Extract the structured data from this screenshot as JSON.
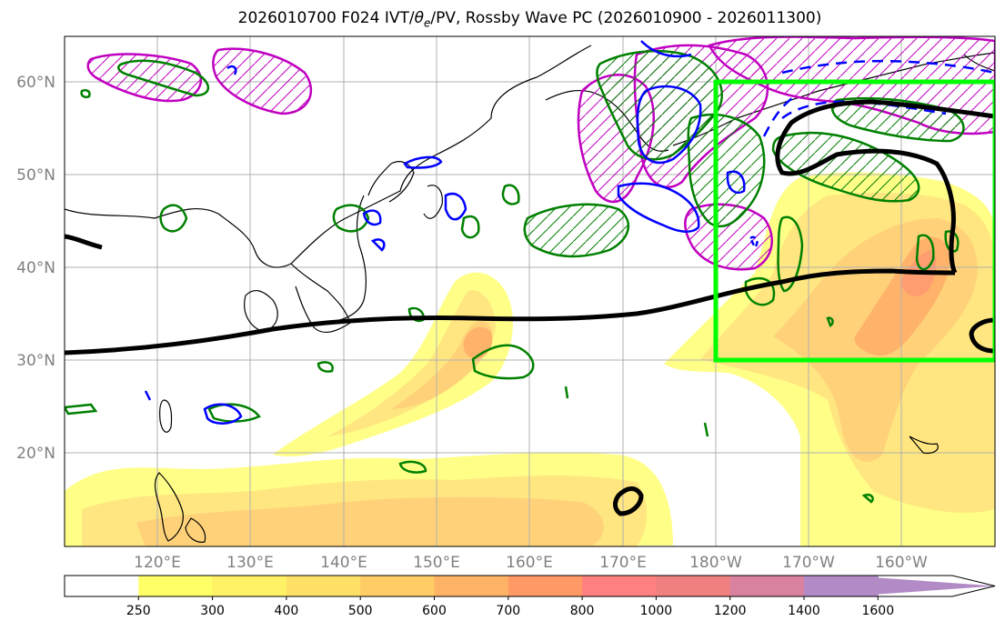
{
  "title": {
    "prefix": "2026010700 F024 IVT/",
    "theta": "θ",
    "theta_sub": "e",
    "suffix": "/PV, Rossby Wave PC (2026010900 - 2026011300)"
  },
  "axes": {
    "lat_labels": [
      "60°N",
      "50°N",
      "40°N",
      "30°N",
      "20°N"
    ],
    "lon_labels": [
      "120°E",
      "130°E",
      "140°E",
      "150°E",
      "160°E",
      "170°E",
      "180°W",
      "170°W",
      "160°W"
    ]
  },
  "colorbar": {
    "levels": [
      "250",
      "300",
      "400",
      "500",
      "600",
      "700",
      "800",
      "1000",
      "1200",
      "1400",
      "1600"
    ],
    "colors": [
      "#ffffff",
      "#ffff66",
      "#fff266",
      "#ffe066",
      "#ffcc66",
      "#ffb366",
      "#ff9966",
      "#ff8080",
      "#f08080",
      "#d982a0",
      "#b28ac6"
    ]
  },
  "box": {
    "lat_range": [
      30,
      60
    ],
    "lon_range": [
      180,
      210
    ],
    "color": "#00ff00"
  },
  "map_colors": {
    "pv_green": "#008000",
    "theta_blue": "#0000ff",
    "magenta": "#c000c0",
    "jet_black": "#000000"
  }
}
